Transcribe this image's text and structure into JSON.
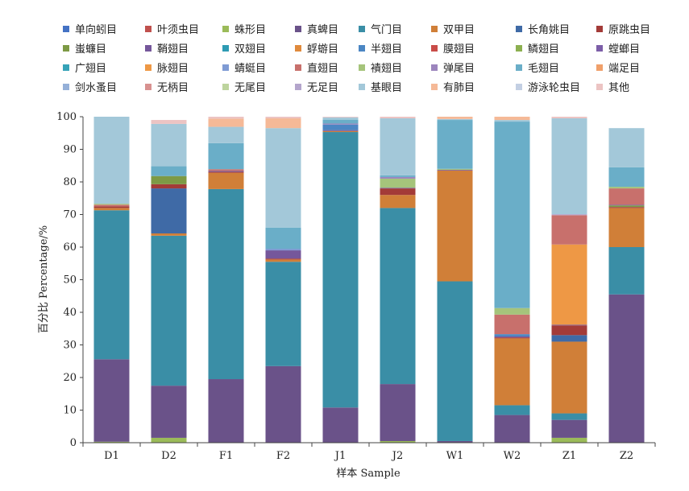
{
  "chart_data": {
    "type": "bar",
    "stacked": true,
    "xlabel": "样本 Sample",
    "ylabel": "百分比 Percentage/%",
    "ylim": [
      0,
      100
    ],
    "yticks": [
      0,
      10,
      20,
      30,
      40,
      50,
      60,
      70,
      80,
      90,
      100
    ],
    "grid": false,
    "legend_position": "top",
    "categories": [
      "D1",
      "D2",
      "F1",
      "F2",
      "J1",
      "J2",
      "W1",
      "W2",
      "Z1",
      "Z2"
    ],
    "series": [
      {
        "name": "单向蚓目",
        "color": "#4472c4",
        "values": [
          0,
          0,
          0,
          0,
          0,
          0,
          0,
          0,
          0,
          0
        ]
      },
      {
        "name": "叶须虫目",
        "color": "#c0504d",
        "values": [
          0,
          0,
          0,
          0,
          0,
          0,
          0,
          0,
          0,
          0
        ]
      },
      {
        "name": "蛛形目",
        "color": "#9bbb59",
        "values": [
          0.3,
          1.5,
          0,
          0,
          0,
          0.5,
          0,
          0,
          1.5,
          0
        ]
      },
      {
        "name": "真蜱目",
        "color": "#6a5289",
        "values": [
          25.3,
          16,
          19.5,
          23.5,
          10.8,
          17.5,
          0.5,
          8.5,
          5.5,
          45.5
        ]
      },
      {
        "name": "气门目",
        "color": "#3a8ea6",
        "values": [
          45.7,
          46,
          58.3,
          32,
          84.5,
          54,
          49,
          3,
          2,
          14.5
        ]
      },
      {
        "name": "双甲目",
        "color": "#d07f38",
        "values": [
          0.7,
          0.7,
          5,
          0.7,
          0.3,
          4,
          34,
          20.5,
          22,
          12
        ]
      },
      {
        "name": "长角姚目",
        "color": "#3f6aa6",
        "values": [
          0,
          13.8,
          0,
          0,
          0,
          0,
          0,
          0,
          2,
          0
        ]
      },
      {
        "name": "原跳虫目",
        "color": "#a33b38",
        "values": [
          0.5,
          1.3,
          0.3,
          0.3,
          0,
          2,
          0,
          0.3,
          3,
          0.3
        ]
      },
      {
        "name": "蚩蠊目",
        "color": "#7d9a45",
        "values": [
          0,
          2.5,
          0,
          0,
          0,
          0,
          0,
          0,
          0,
          0.5
        ]
      },
      {
        "name": "鞘翅目",
        "color": "#75579b",
        "values": [
          0,
          0,
          0.3,
          2.5,
          0.3,
          0.2,
          0.2,
          0.3,
          0.2,
          0.2
        ]
      },
      {
        "name": "双翅目",
        "color": "#2e9bb3",
        "values": [
          0,
          0,
          0,
          0,
          0,
          0,
          0,
          0,
          0,
          0
        ]
      },
      {
        "name": "蜉蝣目",
        "color": "#e08a3c",
        "values": [
          0,
          0,
          0,
          0,
          0,
          0,
          0,
          0,
          0,
          0
        ]
      },
      {
        "name": "半翅目",
        "color": "#4b86c3",
        "values": [
          0,
          0,
          0,
          0,
          1.7,
          0,
          0,
          0.7,
          0,
          0
        ]
      },
      {
        "name": "膜翅目",
        "color": "#c94c48",
        "values": [
          0,
          0,
          0,
          0,
          0,
          0,
          0,
          0,
          0,
          0
        ]
      },
      {
        "name": "鳞翅目",
        "color": "#8cb050",
        "values": [
          0,
          0,
          0,
          0,
          0,
          0,
          0,
          0,
          0,
          0
        ]
      },
      {
        "name": "螳螂目",
        "color": "#7c5ea8",
        "values": [
          0,
          0,
          0,
          0,
          0,
          0,
          0,
          0,
          0,
          0
        ]
      },
      {
        "name": "广翅目",
        "color": "#36a3b8",
        "values": [
          0,
          0,
          0,
          0,
          0,
          0,
          0,
          0,
          0,
          0
        ]
      },
      {
        "name": "脉翅目",
        "color": "#ee9845",
        "values": [
          0,
          0,
          0,
          0,
          0,
          0,
          0,
          0,
          24.6,
          0
        ]
      },
      {
        "name": "蜻蜓目",
        "color": "#7f9bd4",
        "values": [
          0,
          0,
          0,
          0.5,
          0,
          0,
          0,
          0,
          0,
          0
        ]
      },
      {
        "name": "直翅目",
        "color": "#c8706c",
        "values": [
          0.5,
          0,
          0.5,
          0,
          0,
          0,
          0,
          6,
          9,
          5
        ]
      },
      {
        "name": "襀翅目",
        "color": "#a5c47b",
        "values": [
          0.3,
          0,
          0,
          0,
          0,
          2.8,
          0.3,
          2,
          0,
          0.5
        ]
      },
      {
        "name": "弹尾目",
        "color": "#9c85bd",
        "values": [
          0,
          0,
          0,
          0,
          0.3,
          0.5,
          0,
          0,
          0,
          0
        ]
      },
      {
        "name": "毛翅目",
        "color": "#6aaec8",
        "values": [
          0,
          3,
          8,
          6.5,
          1.2,
          0.5,
          15,
          57.2,
          0,
          6
        ]
      },
      {
        "name": "端足目",
        "color": "#f0a06a",
        "values": [
          0,
          0,
          0,
          0,
          0,
          0,
          0,
          0,
          0,
          0
        ]
      },
      {
        "name": "剑水蚤目",
        "color": "#95b0d8",
        "values": [
          0,
          0,
          0,
          0,
          0,
          0,
          0,
          0,
          0,
          0
        ]
      },
      {
        "name": "无柄目",
        "color": "#d89190",
        "values": [
          0,
          0,
          0,
          0,
          0,
          0,
          0,
          0,
          0,
          0
        ]
      },
      {
        "name": "无尾目",
        "color": "#bdd49e",
        "values": [
          0,
          0,
          0,
          0,
          0,
          0,
          0,
          0,
          0,
          0
        ]
      },
      {
        "name": "无足目",
        "color": "#b4a5cc",
        "values": [
          0,
          0,
          0,
          0,
          0,
          0,
          0,
          0,
          0.3,
          0
        ]
      },
      {
        "name": "基眼目",
        "color": "#a3c8d9",
        "values": [
          26.7,
          13,
          5,
          30.5,
          0.7,
          17.5,
          0.3,
          0.5,
          29.4,
          12
        ]
      },
      {
        "name": "有肺目",
        "color": "#f5b997",
        "values": [
          0,
          0,
          2.5,
          3,
          0,
          0,
          0.7,
          1,
          0,
          0
        ]
      },
      {
        "name": "游泳轮虫目",
        "color": "#c3cfe3",
        "values": [
          0,
          0,
          0,
          0,
          0,
          0,
          0,
          0,
          0,
          0
        ]
      },
      {
        "name": "其他",
        "color": "#ecc4c3",
        "values": [
          0,
          1.2,
          0.6,
          0.5,
          0.2,
          0.5,
          0,
          0,
          0.5,
          0
        ]
      }
    ]
  }
}
